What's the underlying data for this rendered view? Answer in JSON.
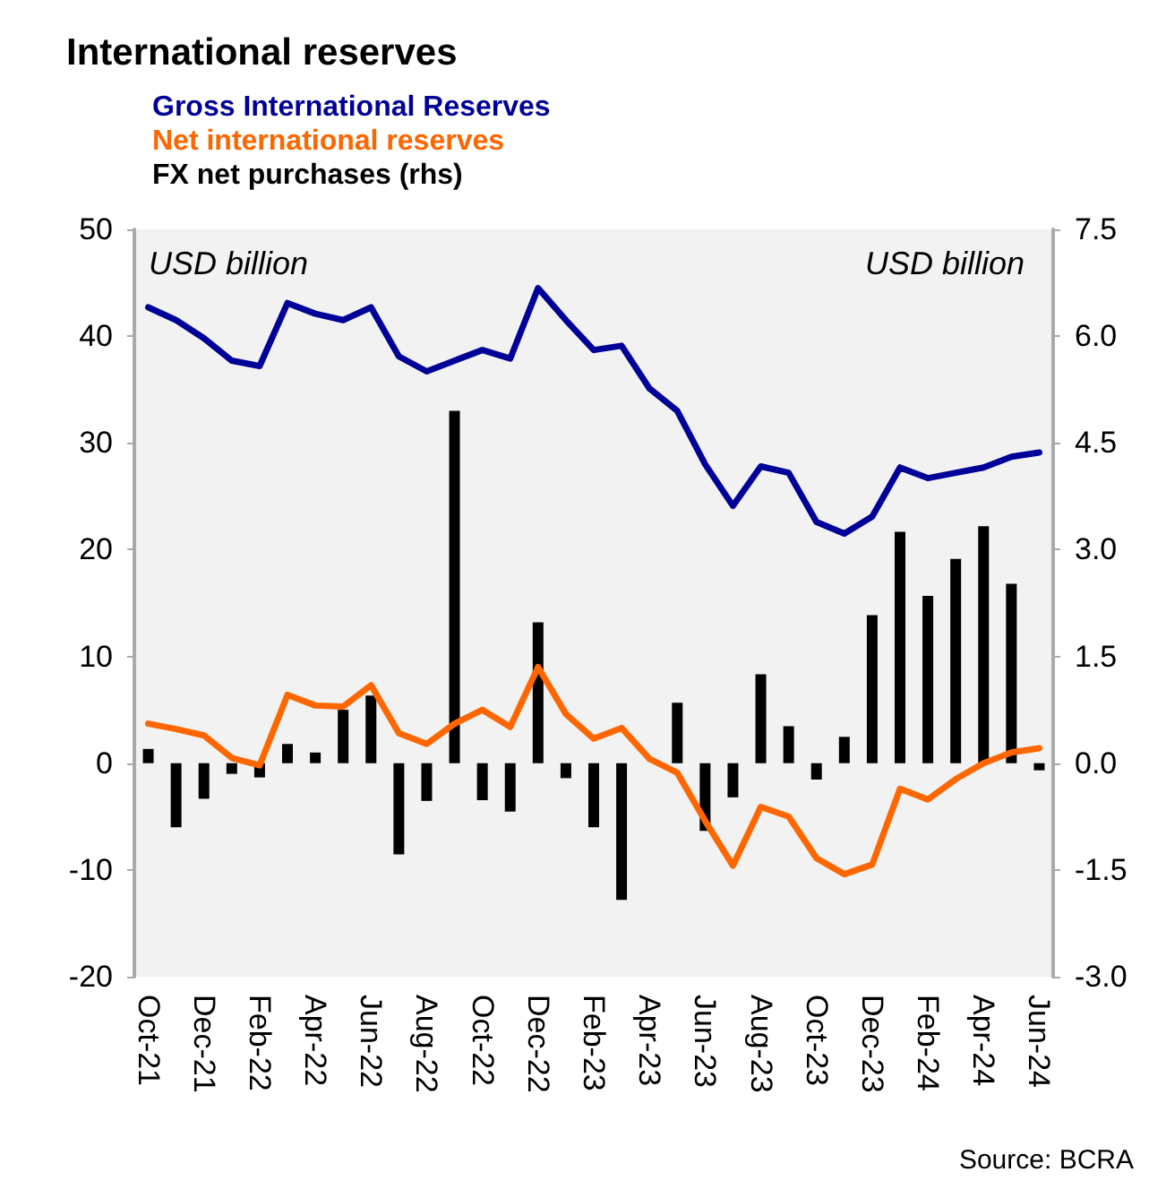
{
  "chart_data": {
    "type": "line",
    "title": "International reserves",
    "ylabel": "USD billion",
    "y2label": "USD billion",
    "categories": [
      "Oct-21",
      null,
      "Dec-21",
      null,
      "Feb-22",
      null,
      "Apr-22",
      null,
      "Jun-22",
      null,
      "Aug-22",
      null,
      "Oct-22",
      null,
      "Dec-22",
      null,
      "Feb-23",
      null,
      "Apr-23",
      null,
      "Jun-23",
      null,
      "Aug-23",
      null,
      "Oct-23",
      null,
      "Dec-23",
      null,
      "Feb-24",
      null,
      "Apr-24",
      null,
      "Jun-24"
    ],
    "series": [
      {
        "name": "Gross International Reserves",
        "color": "#000099",
        "values": [
          42.7,
          41.5,
          39.8,
          37.7,
          37.2,
          43.1,
          42.1,
          41.5,
          42.7,
          38.1,
          36.7,
          37.7,
          38.7,
          37.9,
          44.5,
          41.5,
          38.7,
          39.1,
          35.1,
          33.0,
          28.0,
          24.1,
          27.8,
          27.2,
          22.6,
          21.5,
          23.1,
          27.7,
          26.7,
          27.2,
          27.7,
          28.7,
          29.1
        ]
      },
      {
        "name": "Net international reserves",
        "color": "#ff6600",
        "values": [
          3.7,
          3.2,
          2.6,
          0.5,
          -0.2,
          6.4,
          5.4,
          5.3,
          7.3,
          2.8,
          1.8,
          3.7,
          5.0,
          3.4,
          9.0,
          4.6,
          2.3,
          3.3,
          0.4,
          -0.9,
          -5.4,
          -9.6,
          -4.1,
          -5.0,
          -8.9,
          -10.4,
          -9.5,
          -2.4,
          -3.4,
          -1.5,
          0.0,
          1.0,
          1.4
        ]
      },
      {
        "name": "FX net purchases (rhs)",
        "type": "bar",
        "axis": "y2",
        "color": "#000000",
        "values": [
          0.2,
          -0.9,
          -0.5,
          -0.15,
          -0.2,
          0.27,
          0.15,
          0.75,
          0.95,
          -1.28,
          -0.53,
          4.95,
          -0.52,
          -0.68,
          1.98,
          -0.21,
          -0.9,
          -1.92,
          0,
          0.85,
          -0.95,
          -0.48,
          1.25,
          0.52,
          -0.23,
          0.37,
          2.08,
          3.25,
          2.35,
          2.87,
          3.33,
          2.52,
          -0.1
        ]
      }
    ],
    "ylim": [
      -20,
      50
    ],
    "yticks": [
      -20,
      -10,
      0,
      10,
      20,
      30,
      40,
      50
    ],
    "y2lim": [
      -3,
      7.5
    ],
    "y2ticks": [
      {
        "value": -3,
        "label": "-3.0"
      },
      {
        "value": -1.5,
        "label": "-1.5"
      },
      {
        "value": 0,
        "label": "0.0"
      },
      {
        "value": 1.5,
        "label": "1.5"
      },
      {
        "value": 3,
        "label": "3.0"
      },
      {
        "value": 4.5,
        "label": "4.5"
      },
      {
        "value": 6,
        "label": "6.0"
      },
      {
        "value": 7.5,
        "label": "7.5"
      }
    ],
    "annotations": [
      "Source: BCRA"
    ],
    "legend": "top left",
    "grid": false,
    "marker": "none",
    "line_style": "solid"
  }
}
